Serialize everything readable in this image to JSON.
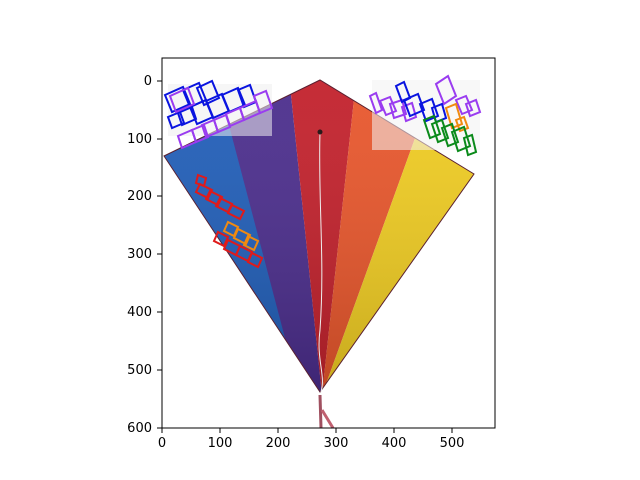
{
  "figure": {
    "x_ticks": [
      "0",
      "100",
      "200",
      "300",
      "400",
      "500"
    ],
    "y_ticks": [
      "0",
      "100",
      "200",
      "300",
      "400",
      "500",
      "600"
    ],
    "xlim": [
      0,
      575
    ],
    "ylim_inverted": [
      600,
      -40
    ]
  },
  "image": {
    "subject": "rainbow-diamond-kite",
    "kite_panel_colors": [
      "#1f5db8",
      "#4a2c8c",
      "#c21f2a",
      "#e8552a",
      "#f0cc20"
    ],
    "kite_texture_note": "Kite fabric with two wordmarks on upper left and upper right corners"
  },
  "annotations": {
    "box_colors": {
      "blue": "#0a14e0",
      "purple": "#9a3cf0",
      "red": "#e01a1a",
      "orange": "#f08a10",
      "green": "#0a8a1a"
    }
  }
}
